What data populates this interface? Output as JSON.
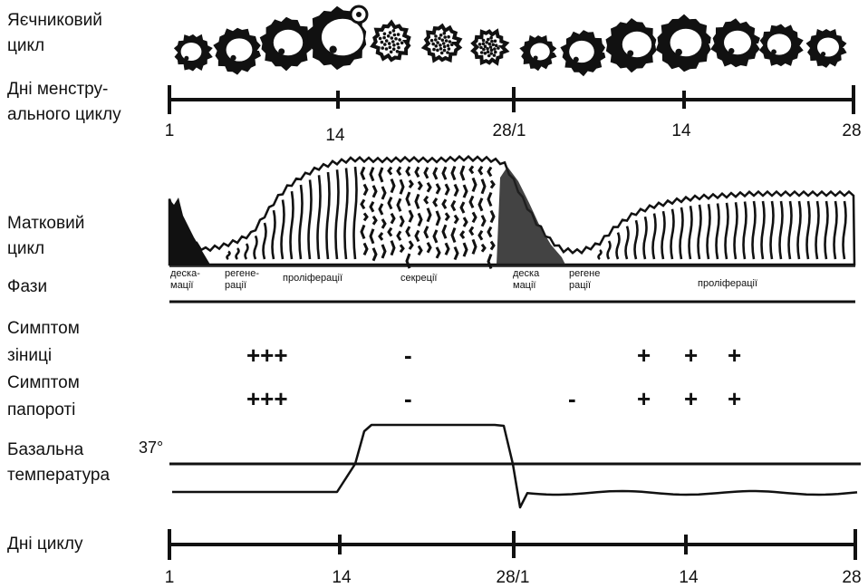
{
  "labels": {
    "ovarian": [
      "Яєчниковий",
      "цикл"
    ],
    "menstrual_days": [
      "Дні менстру-",
      "ального циклу"
    ],
    "uterine": [
      "Матковий",
      "цикл"
    ],
    "phases": "Фази",
    "pupil": [
      "Симптом",
      "зіниці"
    ],
    "fern": [
      "Симптом",
      "папороті"
    ],
    "temperature": [
      "Базальна",
      "температура"
    ],
    "temperature_value": "37°",
    "cycle_days": "Дні циклу"
  },
  "axis_ticks": [
    "1",
    "14",
    "28/1",
    "14",
    "28"
  ],
  "phases": [
    [
      "деска-",
      "мації"
    ],
    [
      "регене-",
      "рації"
    ],
    [
      "проліферації"
    ],
    [
      "секреції"
    ],
    [
      "деска",
      "мації"
    ],
    [
      "регене",
      "рації"
    ],
    [
      "проліферації"
    ]
  ],
  "pupil_symptom": [
    "+++",
    "-",
    "+",
    "+",
    "+"
  ],
  "fern_symptom": [
    "+++",
    "-",
    "-",
    "+",
    "+",
    "+"
  ],
  "colors": {
    "ink": "#111111",
    "background": "#ffffff"
  },
  "icons": {
    "follicle": "ovarian-follicle-icon",
    "corpus_luteum": "corpus-luteum-icon"
  }
}
